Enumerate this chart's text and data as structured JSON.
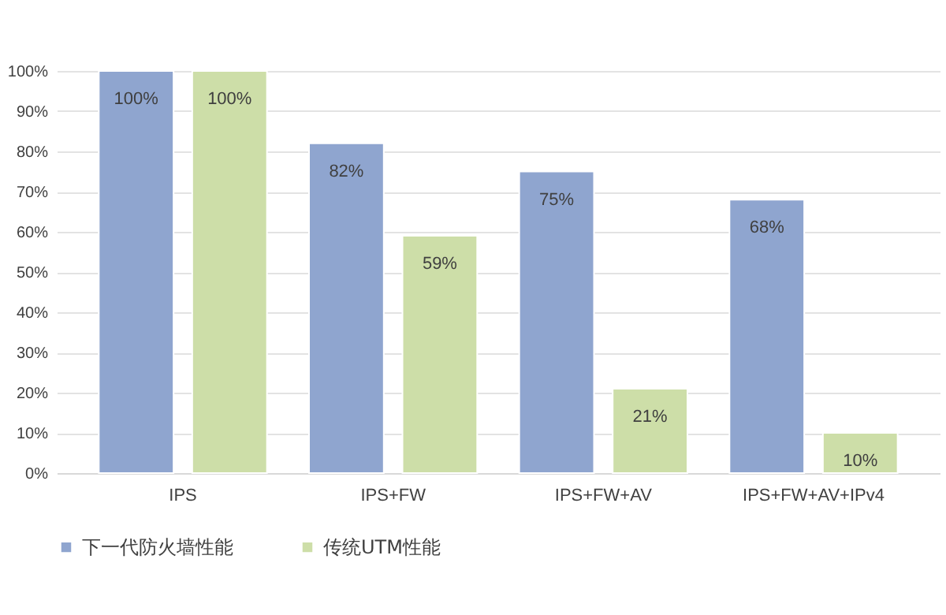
{
  "chart_data": {
    "type": "bar",
    "categories": [
      "IPS",
      "IPS+FW",
      "IPS+FW+AV",
      "IPS+FW+AV+IPv4"
    ],
    "series": [
      {
        "name": "下一代防火墙性能",
        "color": "#8fa5cf",
        "values": [
          100,
          82,
          75,
          68
        ],
        "value_labels": [
          "100%",
          "82%",
          "75%",
          "68%"
        ]
      },
      {
        "name": "传统UTM性能",
        "color": "#cddea8",
        "values": [
          100,
          59,
          21,
          10
        ],
        "value_labels": [
          "100%",
          "59%",
          "21%",
          "10%"
        ]
      }
    ],
    "ylim": [
      0,
      100
    ],
    "yticks": [
      {
        "value": 0,
        "label": "0%"
      },
      {
        "value": 10,
        "label": "10%"
      },
      {
        "value": 20,
        "label": "20%"
      },
      {
        "value": 30,
        "label": "30%"
      },
      {
        "value": 40,
        "label": "40%"
      },
      {
        "value": 50,
        "label": "50%"
      },
      {
        "value": 60,
        "label": "60%"
      },
      {
        "value": 70,
        "label": "70%"
      },
      {
        "value": 80,
        "label": "80%"
      },
      {
        "value": 90,
        "label": "90%"
      },
      {
        "value": 100,
        "label": "100%"
      }
    ],
    "grid": "y",
    "legend": "bottom"
  }
}
